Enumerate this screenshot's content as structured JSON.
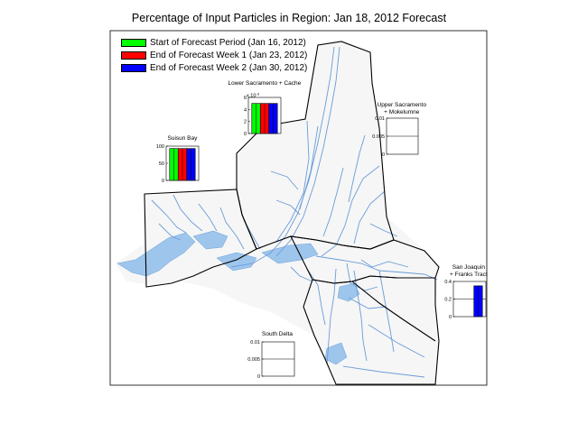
{
  "title": "Percentage of Input Particles in Region: Jan 18, 2012 Forecast",
  "legend": [
    {
      "label": "Start of Forecast Period (Jan 16, 2012)",
      "color": "#00ff00"
    },
    {
      "label": "End of Forecast Week 1 (Jan 23, 2012)",
      "color": "#ff0000"
    },
    {
      "label": "End of Forecast Week 2 (Jan 30, 2012)",
      "color": "#0000ff"
    }
  ],
  "chart_data": [
    {
      "type": "bar",
      "title": "Lower Sacramento + Cache",
      "scale_label": "x 10",
      "scale_exp": "-3",
      "ylim": [
        0,
        6
      ],
      "yticks": [
        "0",
        "2",
        "4",
        "6"
      ],
      "series": [
        {
          "name": "Start of Forecast Period (Jan 16, 2012)",
          "values": [
            5
          ]
        },
        {
          "name": "End of Forecast Week 1 (Jan 23, 2012)",
          "values": [
            5
          ]
        },
        {
          "name": "End of Forecast Week 2 (Jan 30, 2012)",
          "values": [
            5
          ]
        }
      ]
    },
    {
      "type": "bar",
      "title": "Suisun Bay",
      "ylim": [
        0,
        100
      ],
      "yticks": [
        "0",
        "50",
        "100"
      ],
      "series": [
        {
          "name": "Start of Forecast Period (Jan 16, 2012)",
          "values": [
            93
          ]
        },
        {
          "name": "End of Forecast Week 1 (Jan 23, 2012)",
          "values": [
            93
          ]
        },
        {
          "name": "End of Forecast Week 2 (Jan 30, 2012)",
          "values": [
            93
          ]
        }
      ]
    },
    {
      "type": "bar",
      "title": "Upper Sacramento + Mokelumne",
      "ylim": [
        0,
        0.01
      ],
      "yticks": [
        "0",
        "0.005",
        "0.01"
      ],
      "series": [
        {
          "name": "Start of Forecast Period (Jan 16, 2012)",
          "values": [
            0
          ]
        },
        {
          "name": "End of Forecast Week 1 (Jan 23, 2012)",
          "values": [
            0
          ]
        },
        {
          "name": "End of Forecast Week 2 (Jan 30, 2012)",
          "values": [
            0
          ]
        }
      ]
    },
    {
      "type": "bar",
      "title": "San Joaquin + Franks Tract",
      "ylim": [
        0,
        0.4
      ],
      "yticks": [
        "0",
        "0.2",
        "0.4"
      ],
      "series": [
        {
          "name": "Start of Forecast Period (Jan 16, 2012)",
          "values": [
            0
          ]
        },
        {
          "name": "End of Forecast Week 1 (Jan 23, 2012)",
          "values": [
            0
          ]
        },
        {
          "name": "End of Forecast Week 2 (Jan 30, 2012)",
          "values": [
            0.35
          ]
        }
      ]
    },
    {
      "type": "bar",
      "title": "South Delta",
      "ylim": [
        0,
        0.01
      ],
      "yticks": [
        "0",
        "0.005",
        "0.01"
      ],
      "series": [
        {
          "name": "Start of Forecast Period (Jan 16, 2012)",
          "values": [
            0
          ]
        },
        {
          "name": "End of Forecast Week 1 (Jan 23, 2012)",
          "values": [
            0
          ]
        },
        {
          "name": "End of Forecast Week 2 (Jan 30, 2012)",
          "values": [
            0
          ]
        }
      ]
    }
  ]
}
